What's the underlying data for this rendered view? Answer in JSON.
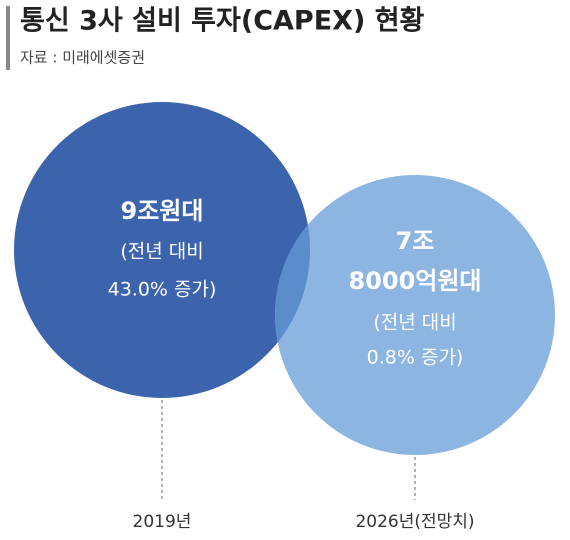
{
  "title": "통신 3사 설비 투자(CAPEX) 현황",
  "source": "자료 : 미래에셋증권",
  "bubbles": [
    {
      "value_lines": [
        "9조원대"
      ],
      "note_lines": [
        "(전년 대비",
        "43.0% 증가)"
      ],
      "year": "2019년"
    },
    {
      "value_lines": [
        "7조",
        "8000억원대"
      ],
      "note_lines": [
        "(전년 대비",
        "0.8% 증가)"
      ],
      "year": "2026년(전망치)"
    }
  ]
}
